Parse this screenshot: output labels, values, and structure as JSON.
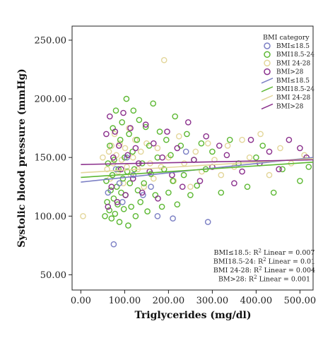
{
  "chart_data": {
    "type": "scatter",
    "xlabel": "Triglycerides (mg/dl)",
    "ylabel": "Systolic blood pressure (mmHg)",
    "xlim": [
      -20,
      530
    ],
    "ylim": [
      37,
      262
    ],
    "x_ticks": [
      0,
      100,
      200,
      300,
      400,
      500
    ],
    "x_tick_labels": [
      "0.00",
      "100.00",
      "200.00",
      "300.00",
      "400.00",
      "500.00"
    ],
    "y_ticks": [
      50,
      100,
      150,
      200,
      250
    ],
    "y_tick_labels": [
      "50.00",
      "100.00",
      "150.00",
      "200.00",
      "250.00"
    ],
    "grid": false,
    "legend": {
      "title": "BMI category",
      "position": "top-right",
      "entries": [
        {
          "label": "BMI≤18.5",
          "kind": "marker",
          "color": "#7b7fc4"
        },
        {
          "label": "BMI18.5-24",
          "kind": "marker",
          "color": "#5cb832"
        },
        {
          "label": "BMI 24-28",
          "kind": "marker",
          "color": "#e3d69a"
        },
        {
          "label": "BMI>28",
          "kind": "marker",
          "color": "#8a2f8c"
        },
        {
          "label": "BMI≤18.5",
          "kind": "line",
          "color": "#7b7fc4"
        },
        {
          "label": "BMI18.5-24",
          "kind": "line",
          "color": "#5cb832"
        },
        {
          "label": "BMI 24-28",
          "kind": "line",
          "color": "#e3d69a"
        },
        {
          "label": "BMI>28",
          "kind": "line",
          "color": "#8a2f8c"
        }
      ]
    },
    "series": [
      {
        "name": "BMI≤18.5",
        "color": "#7b7fc4",
        "fit": {
          "x": [
            0,
            530
          ],
          "y": [
            129,
            150
          ]
        },
        "points": [
          [
            62,
            120
          ],
          [
            75,
            76
          ],
          [
            80,
            140
          ],
          [
            88,
            128
          ],
          [
            95,
            112
          ],
          [
            105,
            150
          ],
          [
            120,
            135
          ],
          [
            142,
            118
          ],
          [
            160,
            125
          ],
          [
            175,
            100
          ],
          [
            210,
            98
          ],
          [
            240,
            155
          ],
          [
            290,
            95
          ]
        ]
      },
      {
        "name": "BMI18.5-24",
        "color": "#5cb832",
        "fit": {
          "x": [
            0,
            530
          ],
          "y": [
            133,
            146
          ]
        },
        "points": [
          [
            55,
            100
          ],
          [
            58,
            130
          ],
          [
            60,
            112
          ],
          [
            62,
            145
          ],
          [
            65,
            105
          ],
          [
            66,
            160
          ],
          [
            68,
            122
          ],
          [
            70,
            98
          ],
          [
            72,
            135
          ],
          [
            73,
            175
          ],
          [
            75,
            115
          ],
          [
            76,
            148
          ],
          [
            78,
            102
          ],
          [
            80,
            190
          ],
          [
            82,
            125
          ],
          [
            84,
            110
          ],
          [
            86,
            140
          ],
          [
            88,
            95
          ],
          [
            90,
            165
          ],
          [
            92,
            120
          ],
          [
            94,
            180
          ],
          [
            96,
            132
          ],
          [
            98,
            106
          ],
          [
            100,
            150
          ],
          [
            102,
            118
          ],
          [
            104,
            200
          ],
          [
            106,
            138
          ],
          [
            108,
            92
          ],
          [
            110,
            170
          ],
          [
            112,
            128
          ],
          [
            115,
            108
          ],
          [
            118,
            155
          ],
          [
            120,
            190
          ],
          [
            122,
            140
          ],
          [
            125,
            100
          ],
          [
            128,
            165
          ],
          [
            130,
            122
          ],
          [
            133,
            182
          ],
          [
            136,
            112
          ],
          [
            140,
            145
          ],
          [
            144,
            128
          ],
          [
            148,
            176
          ],
          [
            152,
            104
          ],
          [
            156,
            160
          ],
          [
            160,
            136
          ],
          [
            165,
            196
          ],
          [
            170,
            118
          ],
          [
            175,
            150
          ],
          [
            180,
            172
          ],
          [
            185,
            108
          ],
          [
            190,
            140
          ],
          [
            195,
            165
          ],
          [
            200,
            120
          ],
          [
            205,
            152
          ],
          [
            210,
            130
          ],
          [
            215,
            185
          ],
          [
            220,
            110
          ],
          [
            228,
            160
          ],
          [
            235,
            135
          ],
          [
            242,
            170
          ],
          [
            250,
            118
          ],
          [
            258,
            148
          ],
          [
            265,
            126
          ],
          [
            275,
            162
          ],
          [
            285,
            140
          ],
          [
            300,
            155
          ],
          [
            320,
            120
          ],
          [
            340,
            165
          ],
          [
            360,
            145
          ],
          [
            380,
            125
          ],
          [
            400,
            150
          ],
          [
            415,
            160
          ],
          [
            440,
            120
          ],
          [
            460,
            140
          ],
          [
            500,
            130
          ],
          [
            520,
            142
          ]
        ]
      },
      {
        "name": "BMI 24-28",
        "color": "#e3d69a",
        "fit": {
          "x": [
            0,
            530
          ],
          "y": [
            137,
            149
          ]
        },
        "points": [
          [
            5,
            100
          ],
          [
            50,
            150
          ],
          [
            60,
            140
          ],
          [
            64,
            155
          ],
          [
            67,
            132
          ],
          [
            70,
            160
          ],
          [
            74,
            145
          ],
          [
            77,
            170
          ],
          [
            81,
            152
          ],
          [
            85,
            138
          ],
          [
            89,
            162
          ],
          [
            93,
            148
          ],
          [
            97,
            128
          ],
          [
            101,
            158
          ],
          [
            105,
            142
          ],
          [
            110,
            175
          ],
          [
            114,
            135
          ],
          [
            119,
            150
          ],
          [
            124,
            165
          ],
          [
            130,
            140
          ],
          [
            137,
            155
          ],
          [
            144,
            125
          ],
          [
            150,
            162
          ],
          [
            158,
            145
          ],
          [
            166,
            132
          ],
          [
            175,
            158
          ],
          [
            183,
            142
          ],
          [
            190,
            233
          ],
          [
            200,
            150
          ],
          [
            212,
            130
          ],
          [
            224,
            168
          ],
          [
            236,
            145
          ],
          [
            250,
            125
          ],
          [
            262,
            155
          ],
          [
            276,
            138
          ],
          [
            290,
            162
          ],
          [
            305,
            148
          ],
          [
            320,
            135
          ],
          [
            335,
            160
          ],
          [
            350,
            142
          ],
          [
            368,
            165
          ],
          [
            385,
            150
          ],
          [
            410,
            170
          ],
          [
            430,
            135
          ],
          [
            455,
            158
          ],
          [
            480,
            145
          ],
          [
            510,
            152
          ]
        ]
      },
      {
        "name": "BMI>28",
        "color": "#8a2f8c",
        "fit": {
          "x": [
            0,
            530
          ],
          "y": [
            144,
            148
          ]
        },
        "points": [
          [
            58,
            170
          ],
          [
            62,
            108
          ],
          [
            66,
            185
          ],
          [
            70,
            125
          ],
          [
            74,
            150
          ],
          [
            78,
            172
          ],
          [
            83,
            112
          ],
          [
            87,
            160
          ],
          [
            92,
            140
          ],
          [
            97,
            188
          ],
          [
            102,
            118
          ],
          [
            107,
            152
          ],
          [
            113,
            175
          ],
          [
            119,
            132
          ],
          [
            125,
            158
          ],
          [
            132,
            145
          ],
          [
            140,
            120
          ],
          [
            148,
            178
          ],
          [
            157,
            138
          ],
          [
            166,
            162
          ],
          [
            176,
            115
          ],
          [
            186,
            150
          ],
          [
            197,
            172
          ],
          [
            208,
            135
          ],
          [
            220,
            158
          ],
          [
            232,
            125
          ],
          [
            245,
            180
          ],
          [
            258,
            148
          ],
          [
            272,
            130
          ],
          [
            286,
            168
          ],
          [
            300,
            142
          ],
          [
            316,
            160
          ],
          [
            333,
            152
          ],
          [
            350,
            128
          ],
          [
            368,
            138
          ],
          [
            388,
            165
          ],
          [
            408,
            145
          ],
          [
            430,
            155
          ],
          [
            452,
            140
          ],
          [
            475,
            165
          ],
          [
            500,
            158
          ],
          [
            515,
            150
          ]
        ]
      }
    ],
    "annotations": [
      {
        "series": "BMI≤18.5",
        "prefix": "BMI≤18.5: R",
        "suffix": " Linear = 0.007"
      },
      {
        "series": "BMI18.5-24",
        "prefix": "BMI18.5-24: R",
        "suffix": " Linear = 0.01"
      },
      {
        "series": "BMI 24-28",
        "prefix": "BMI 24-28: R",
        "suffix": " Linear = 0.004"
      },
      {
        "series": "BMI>28",
        "prefix": "BM>28: R",
        "suffix": " Linear = 0.001"
      }
    ]
  }
}
